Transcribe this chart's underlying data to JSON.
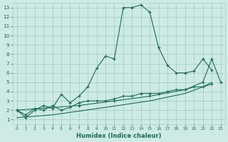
{
  "xlabel": "Humidex (Indice chaleur)",
  "xlim": [
    -0.5,
    23.5
  ],
  "ylim": [
    0.5,
    13.5
  ],
  "xticks": [
    0,
    1,
    2,
    3,
    4,
    5,
    6,
    7,
    8,
    9,
    10,
    11,
    12,
    13,
    14,
    15,
    16,
    17,
    18,
    19,
    20,
    21,
    22,
    23
  ],
  "yticks": [
    1,
    2,
    3,
    4,
    5,
    6,
    7,
    8,
    9,
    10,
    11,
    12,
    13
  ],
  "bg_color": "#ceeae4",
  "grid_color": "#a8cfc8",
  "line_color": "#1a6b5a",
  "line1": [
    [
      0,
      2.0
    ],
    [
      1,
      1.2
    ],
    [
      2,
      2.0
    ],
    [
      3,
      2.5
    ],
    [
      4,
      2.2
    ],
    [
      5,
      3.7
    ],
    [
      6,
      2.8
    ],
    [
      7,
      3.5
    ],
    [
      8,
      4.5
    ],
    [
      9,
      6.5
    ],
    [
      10,
      7.8
    ],
    [
      11,
      7.5
    ],
    [
      12,
      13.0
    ],
    [
      13,
      13.0
    ],
    [
      14,
      13.3
    ],
    [
      15,
      12.5
    ],
    [
      16,
      8.7
    ],
    [
      17,
      6.8
    ],
    [
      18,
      6.0
    ],
    [
      19,
      6.0
    ],
    [
      20,
      6.2
    ],
    [
      21,
      7.5
    ],
    [
      22,
      6.3
    ]
  ],
  "line2": [
    [
      0,
      2.0
    ],
    [
      1,
      1.5
    ],
    [
      2,
      2.2
    ],
    [
      3,
      2.0
    ],
    [
      4,
      2.5
    ],
    [
      5,
      2.0
    ],
    [
      6,
      2.3
    ],
    [
      7,
      2.8
    ],
    [
      8,
      3.0
    ],
    [
      9,
      3.0
    ],
    [
      10,
      3.0
    ],
    [
      11,
      3.2
    ],
    [
      12,
      3.5
    ],
    [
      13,
      3.5
    ],
    [
      14,
      3.8
    ],
    [
      15,
      3.8
    ],
    [
      16,
      3.8
    ],
    [
      17,
      4.0
    ],
    [
      18,
      4.2
    ],
    [
      19,
      4.2
    ],
    [
      20,
      4.5
    ],
    [
      21,
      4.5
    ],
    [
      22,
      4.8
    ]
  ],
  "line3": [
    [
      0,
      2.0
    ],
    [
      7,
      2.5
    ],
    [
      11,
      3.0
    ],
    [
      15,
      3.5
    ],
    [
      19,
      4.2
    ],
    [
      21,
      5.0
    ],
    [
      22,
      7.5
    ],
    [
      23,
      5.0
    ]
  ],
  "line4": [
    [
      0,
      1.2
    ],
    [
      4,
      1.5
    ],
    [
      10,
      2.3
    ],
    [
      15,
      3.0
    ],
    [
      19,
      3.8
    ],
    [
      21,
      4.5
    ],
    [
      22,
      5.0
    ]
  ]
}
